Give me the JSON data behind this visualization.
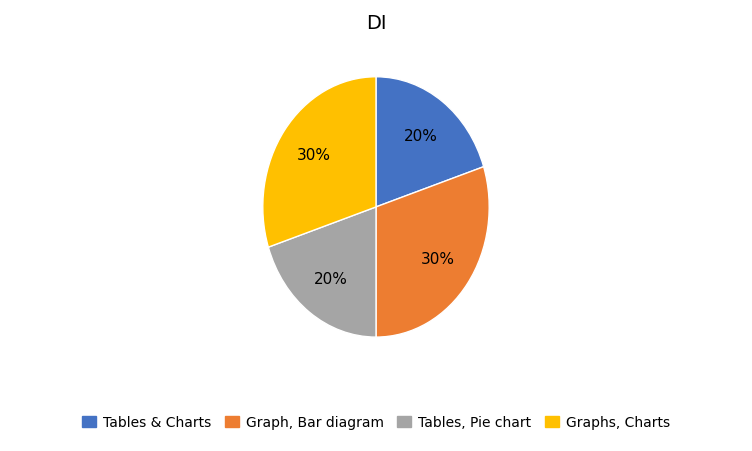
{
  "title": "DI",
  "labels": [
    "Tables & Charts",
    "Graph, Bar diagram",
    "Tables, Pie chart",
    "Graphs, Charts"
  ],
  "values": [
    20,
    30,
    20,
    30
  ],
  "colors": [
    "#4472C4",
    "#ED7D31",
    "#A5A5A5",
    "#FFC000"
  ],
  "startangle": 90,
  "title_fontsize": 14,
  "legend_fontsize": 10,
  "background_color": "#FFFFFF",
  "pct_distance": 0.68
}
